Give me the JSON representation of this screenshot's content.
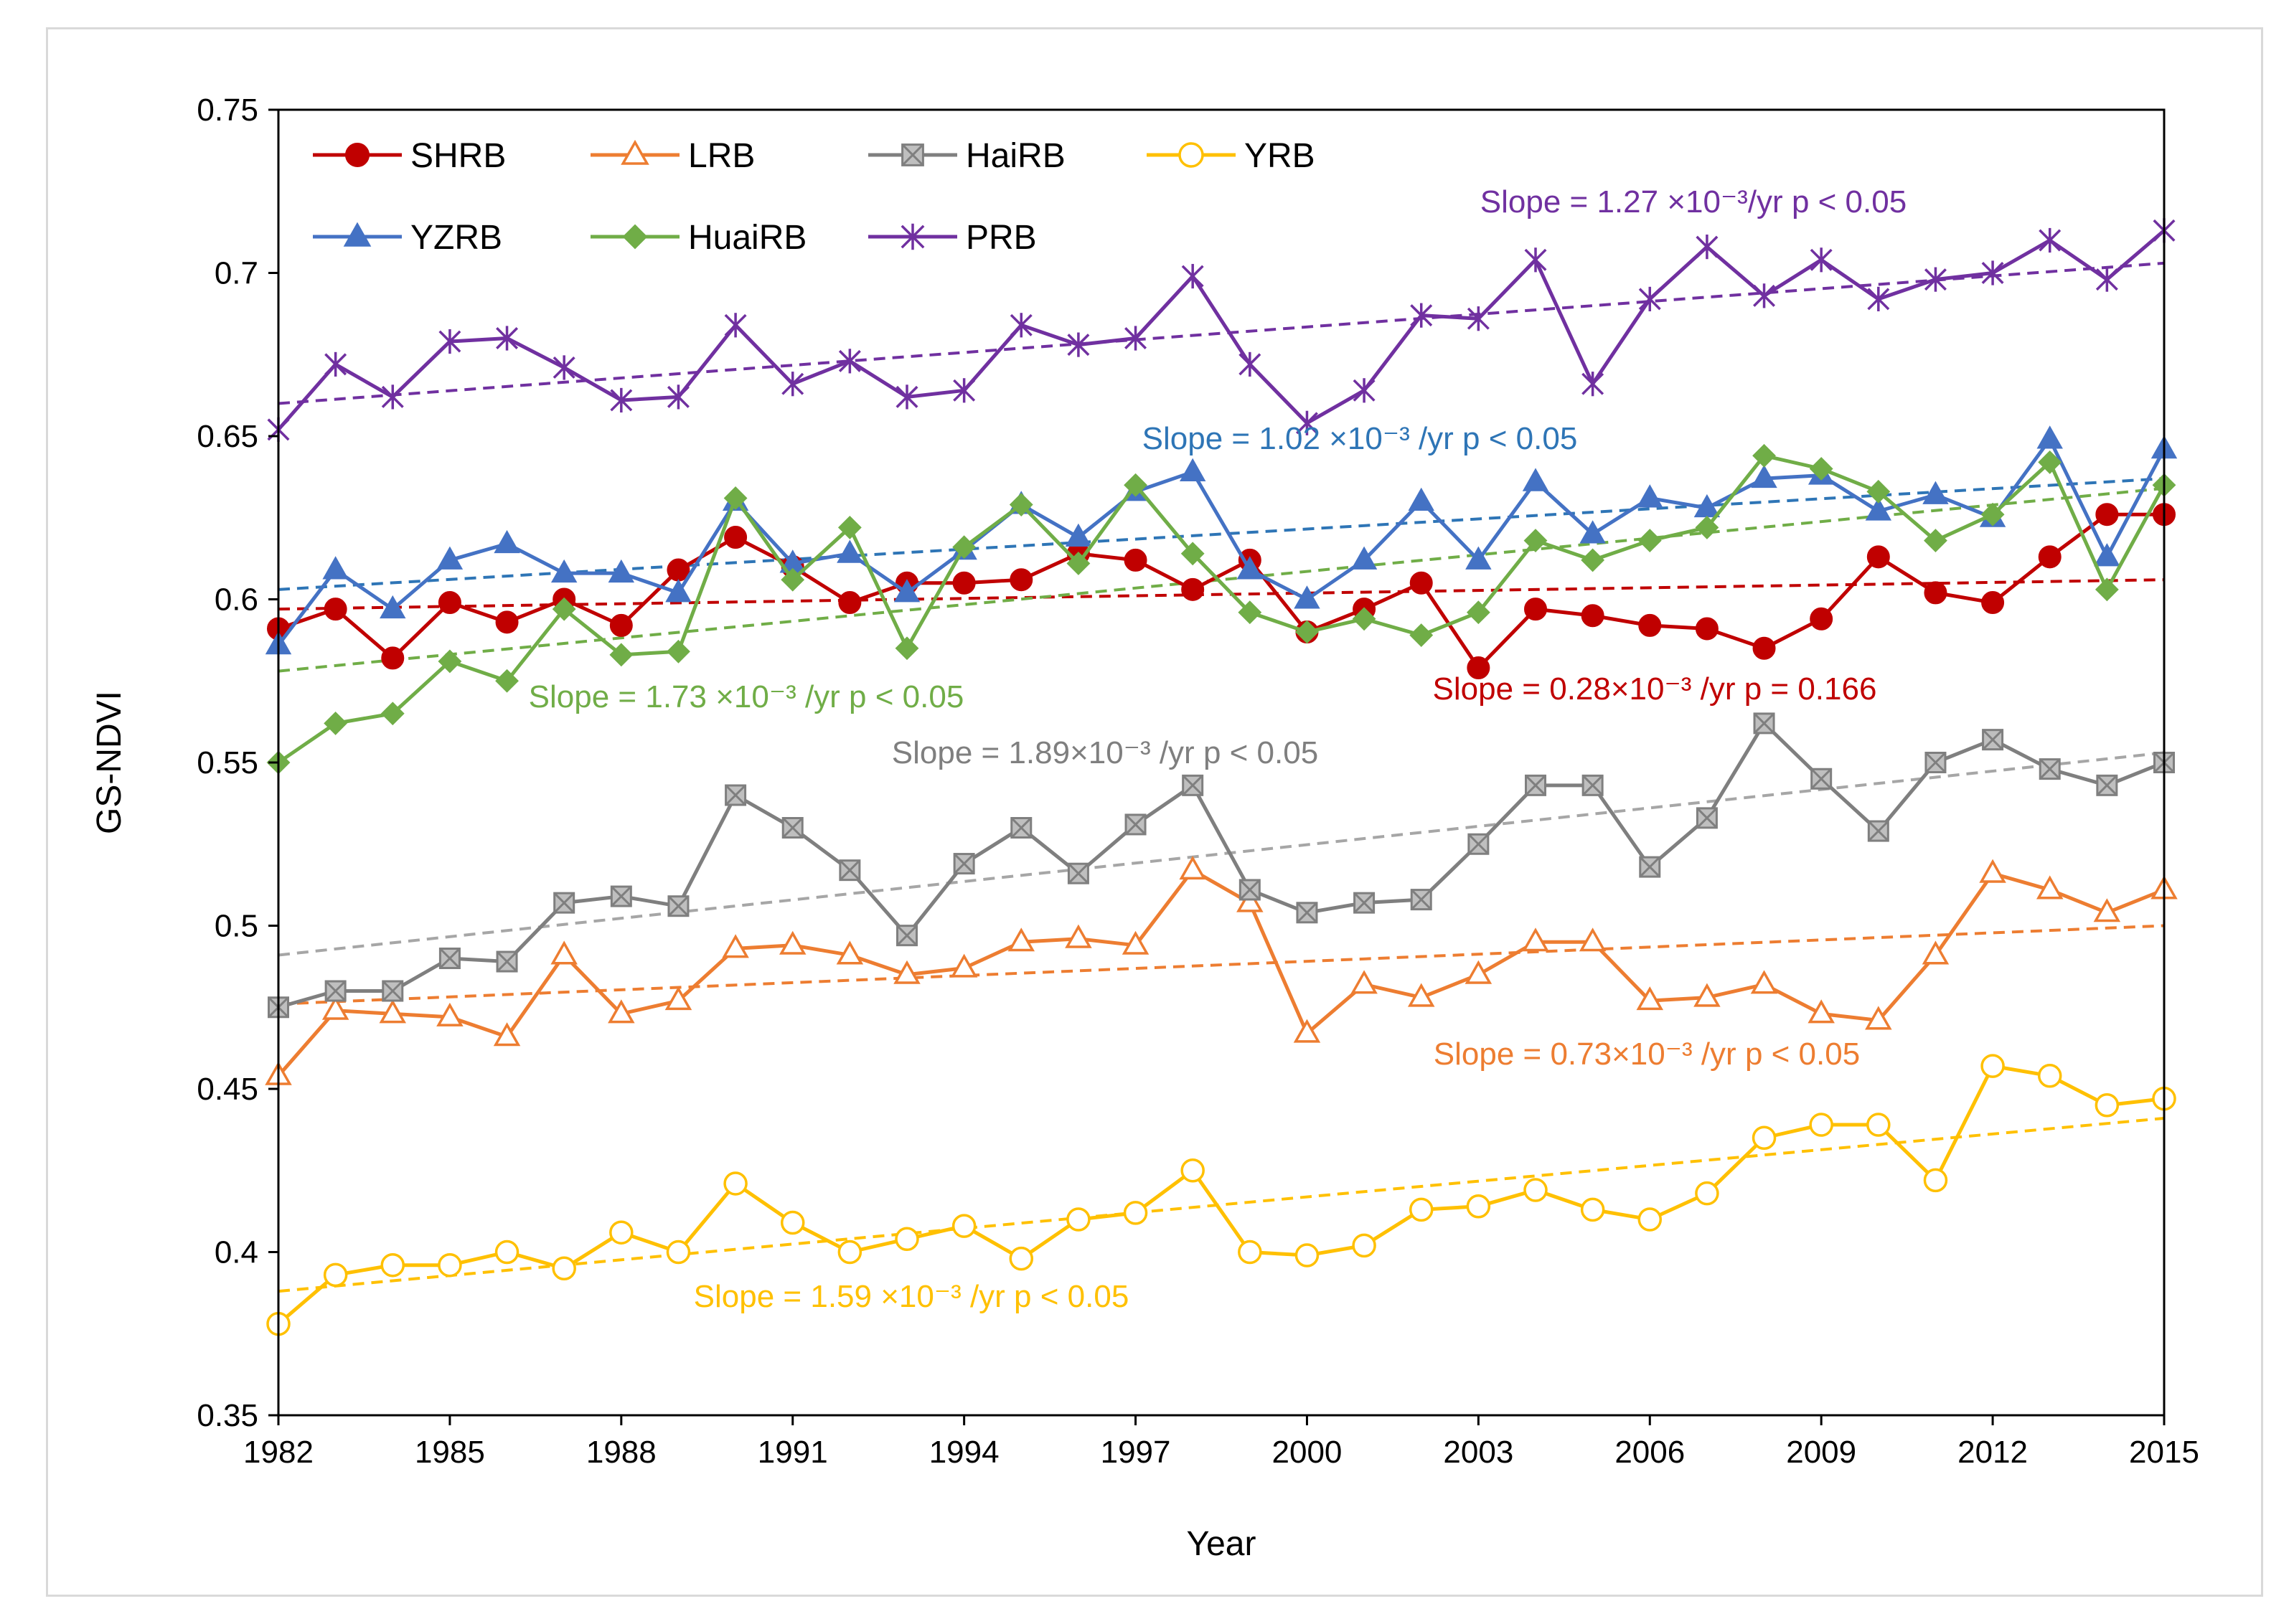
{
  "chart_data": {
    "type": "line",
    "title": "",
    "xlabel": "Year",
    "ylabel": "GS-NDVI",
    "xlim": [
      1982,
      2015
    ],
    "ylim": [
      0.35,
      0.75
    ],
    "x_ticks": [
      1982,
      1985,
      1988,
      1991,
      1994,
      1997,
      2000,
      2003,
      2006,
      2009,
      2012,
      2015
    ],
    "y_ticks": [
      0.35,
      0.4,
      0.45,
      0.5,
      0.55,
      0.6,
      0.65,
      0.7,
      0.75
    ],
    "y_tick_labels": [
      "0.35",
      "0.4",
      "0.45",
      "0.5",
      "0.55",
      "0.6",
      "0.65",
      "0.7",
      "0.75"
    ],
    "x": [
      1982,
      1983,
      1984,
      1985,
      1986,
      1987,
      1988,
      1989,
      1990,
      1991,
      1992,
      1993,
      1994,
      1995,
      1996,
      1997,
      1998,
      1999,
      2000,
      2001,
      2002,
      2003,
      2004,
      2005,
      2006,
      2007,
      2008,
      2009,
      2010,
      2011,
      2012,
      2013,
      2014,
      2015
    ],
    "series": [
      {
        "name": "SHRB",
        "color": "#c00000",
        "marker": "circle-filled",
        "values": [
          0.591,
          0.597,
          0.582,
          0.599,
          0.593,
          0.6,
          0.592,
          0.609,
          0.619,
          0.61,
          0.599,
          0.605,
          0.605,
          0.606,
          0.614,
          0.612,
          0.603,
          0.612,
          0.59,
          0.597,
          0.605,
          0.579,
          0.597,
          0.595,
          0.592,
          0.591,
          0.585,
          0.594,
          0.613,
          0.602,
          0.599,
          0.613,
          0.626,
          0.626
        ],
        "trend": [
          0.597,
          0.606
        ],
        "slope_text": "Slope = 0.28×10⁻³ /yr    p = 0.166"
      },
      {
        "name": "LRB",
        "color": "#ed7d31",
        "marker": "triangle-open",
        "values": [
          0.454,
          0.474,
          0.473,
          0.472,
          0.466,
          0.491,
          0.473,
          0.477,
          0.493,
          0.494,
          0.491,
          0.485,
          0.487,
          0.495,
          0.496,
          0.494,
          0.517,
          0.507,
          0.467,
          0.482,
          0.478,
          0.485,
          0.495,
          0.495,
          0.477,
          0.478,
          0.482,
          0.473,
          0.471,
          0.491,
          0.516,
          0.511,
          0.504,
          0.511
        ],
        "trend": [
          0.476,
          0.5
        ],
        "slope_text": "Slope = 0.73×10⁻³ /yr    p < 0.05"
      },
      {
        "name": "HaiRB",
        "color": "#7f7f7f",
        "marker": "square-x",
        "values": [
          0.475,
          0.48,
          0.48,
          0.49,
          0.489,
          0.507,
          0.509,
          0.506,
          0.54,
          0.53,
          0.517,
          0.497,
          0.519,
          0.53,
          0.516,
          0.531,
          0.543,
          0.511,
          0.504,
          0.507,
          0.508,
          0.525,
          0.543,
          0.543,
          0.518,
          0.533,
          0.562,
          0.545,
          0.529,
          0.55,
          0.557,
          0.548,
          0.543,
          0.55
        ],
        "trend": [
          0.491,
          0.553
        ],
        "slope_text": "Slope = 1.89×10⁻³ /yr    p < 0.05"
      },
      {
        "name": "YRB",
        "color": "#ffc000",
        "marker": "circle-open",
        "values": [
          0.378,
          0.393,
          0.396,
          0.396,
          0.4,
          0.395,
          0.406,
          0.4,
          0.421,
          0.409,
          0.4,
          0.404,
          0.408,
          0.398,
          0.41,
          0.412,
          0.425,
          0.4,
          0.399,
          0.402,
          0.413,
          0.414,
          0.419,
          0.413,
          0.41,
          0.418,
          0.435,
          0.439,
          0.439,
          0.422,
          0.457,
          0.454,
          0.445,
          0.447
        ],
        "trend": [
          0.388,
          0.441
        ],
        "slope_text": "Slope = 1.59 ×10⁻³ /yr    p < 0.05"
      },
      {
        "name": "YZRB",
        "color": "#4472c4",
        "marker": "triangle-filled",
        "values": [
          0.586,
          0.609,
          0.597,
          0.612,
          0.617,
          0.608,
          0.608,
          0.602,
          0.63,
          0.611,
          0.614,
          0.602,
          0.615,
          0.629,
          0.619,
          0.633,
          0.639,
          0.609,
          0.6,
          0.612,
          0.63,
          0.612,
          0.636,
          0.62,
          0.631,
          0.628,
          0.637,
          0.638,
          0.627,
          0.632,
          0.625,
          0.649,
          0.613,
          0.646
        ],
        "trend": [
          0.603,
          0.637
        ],
        "slope_text": "Slope = 1.02 ×10⁻³ /yr    p < 0.05"
      },
      {
        "name": "HuaiRB",
        "color": "#70ad47",
        "marker": "diamond-filled",
        "values": [
          0.55,
          0.562,
          0.565,
          0.581,
          0.575,
          0.597,
          0.583,
          0.584,
          0.631,
          0.606,
          0.622,
          0.585,
          0.616,
          0.629,
          0.611,
          0.635,
          0.614,
          0.596,
          0.59,
          0.594,
          0.589,
          0.596,
          0.618,
          0.612,
          0.618,
          0.622,
          0.644,
          0.64,
          0.633,
          0.618,
          0.626,
          0.642,
          0.603,
          0.635
        ],
        "trend": [
          0.578,
          0.634
        ],
        "slope_text": "Slope = 1.73 ×10⁻³ /yr    p < 0.05"
      },
      {
        "name": "PRB",
        "color": "#7030a0",
        "marker": "star",
        "values": [
          0.652,
          0.672,
          0.662,
          0.679,
          0.68,
          0.671,
          0.661,
          0.662,
          0.684,
          0.666,
          0.673,
          0.662,
          0.664,
          0.684,
          0.678,
          0.68,
          0.699,
          0.672,
          0.654,
          0.664,
          0.687,
          0.686,
          0.704,
          0.666,
          0.692,
          0.708,
          0.693,
          0.704,
          0.692,
          0.698,
          0.7,
          0.71,
          0.698,
          0.713
        ],
        "trend": [
          0.66,
          0.703
        ],
        "slope_text": "Slope = 1.27 ×10⁻³/yr    p < 0.05"
      }
    ],
    "legend": {
      "placement": "top-left",
      "entries": [
        "SHRB",
        "LRB",
        "HaiRB",
        "YRB",
        "YZRB",
        "HuaiRB",
        "PRB"
      ]
    },
    "slope_label_colors": {
      "SHRB": "#c00000",
      "LRB": "#ed7d31",
      "HaiRB": "#7f7f7f",
      "YRB": "#ffc000",
      "YZRB": "#2e75b6",
      "HuaiRB": "#70ad47",
      "PRB": "#7030a0"
    },
    "trend_colors": {
      "SHRB": "#c00000",
      "LRB": "#ed7d31",
      "HaiRB": "#a6a6a6",
      "YRB": "#ffc000",
      "YZRB": "#2e75b6",
      "HuaiRB": "#70ad47",
      "PRB": "#7030a0"
    }
  }
}
